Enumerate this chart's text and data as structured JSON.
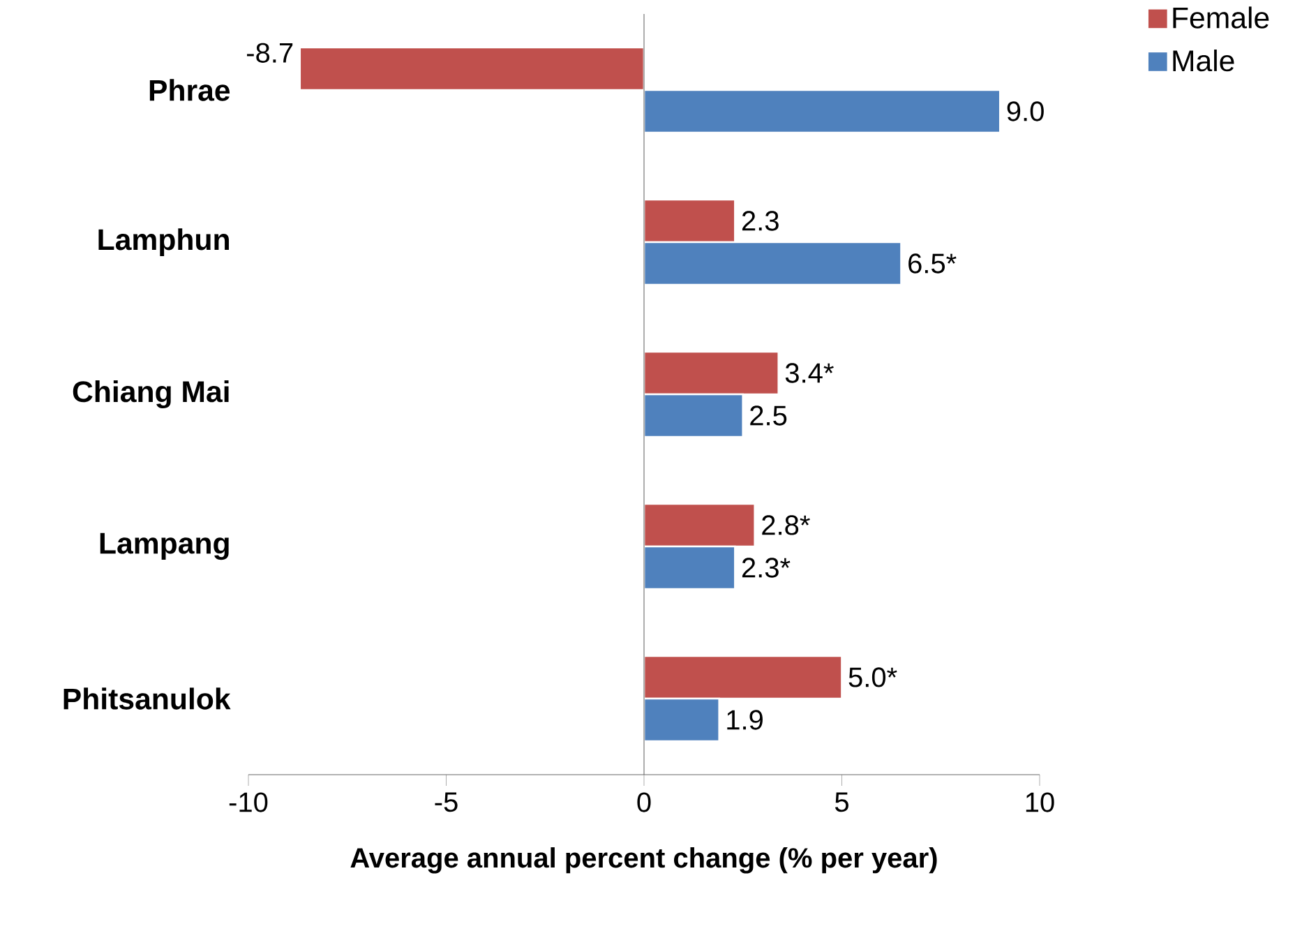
{
  "chart_data": {
    "type": "bar",
    "orientation": "horizontal",
    "categories": [
      "Phrae",
      "Lamphun",
      "Chiang Mai",
      "Lampang",
      "Phitsanulok"
    ],
    "series": [
      {
        "name": "Female",
        "color": "#c0504d",
        "values": [
          -8.7,
          2.3,
          3.4,
          2.8,
          5.0
        ],
        "value_labels": [
          "-8.7",
          "2.3",
          "3.4*",
          "2.8*",
          "5.0*"
        ]
      },
      {
        "name": "Male",
        "color": "#4f81bd",
        "values": [
          9.0,
          6.5,
          2.5,
          2.3,
          1.9
        ],
        "value_labels": [
          "9.0",
          "6.5*",
          "2.5",
          "2.3*",
          "1.9"
        ]
      }
    ],
    "xlim": [
      -10,
      10
    ],
    "xticks": [
      -10,
      -5,
      0,
      5,
      10
    ],
    "xlabel": "Average annual percent change (% per year)",
    "legend": "top right"
  }
}
